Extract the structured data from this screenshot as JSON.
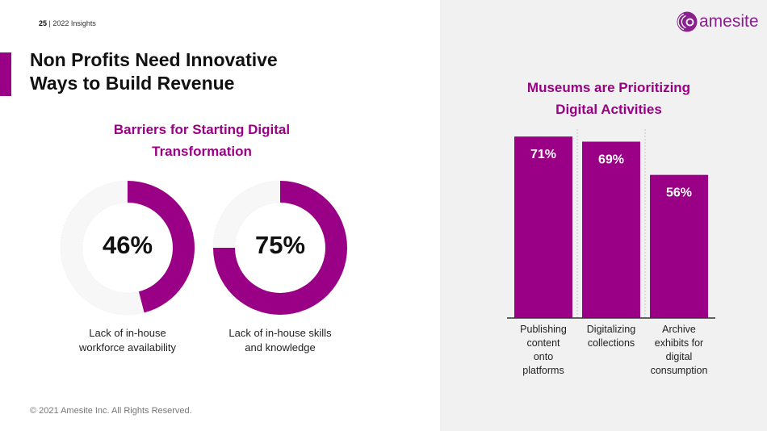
{
  "header": {
    "page_number": "25",
    "separator": " | ",
    "section": "2022 Insights",
    "title_line1": "Non Profits Need Innovative",
    "title_line2": "Ways to Build Revenue",
    "logo_text": "amesite"
  },
  "colors": {
    "accent": "#990085",
    "track": "#f7f7f7",
    "panel_bg": "#f1f1f1"
  },
  "footer": {
    "copyright": "© 2021 Amesite Inc. All Rights Reserved."
  },
  "chart_data": [
    {
      "type": "pie",
      "title_line1": "Barriers for Starting Digital",
      "title_line2": "Transformation",
      "donuts": [
        {
          "value": 46,
          "label_text": "46%",
          "caption_line1": "Lack of in-house",
          "caption_line2": "workforce availability"
        },
        {
          "value": 75,
          "label_text": "75%",
          "caption_line1": "Lack of in-house skills",
          "caption_line2": "and knowledge"
        }
      ]
    },
    {
      "type": "bar",
      "title_line1": "Museums are Prioritizing",
      "title_line2": "Digital Activities",
      "categories": [
        [
          "Publishing",
          "content",
          "onto",
          "platforms"
        ],
        [
          "Digitalizing",
          "collections"
        ],
        [
          "Archive",
          "exhibits for",
          "digital",
          "consumption"
        ]
      ],
      "values": [
        71,
        69,
        56
      ],
      "data_labels": [
        "71%",
        "69%",
        "56%"
      ],
      "ylim": [
        0,
        72
      ],
      "grid": false,
      "xlabel": "",
      "ylabel": ""
    }
  ]
}
